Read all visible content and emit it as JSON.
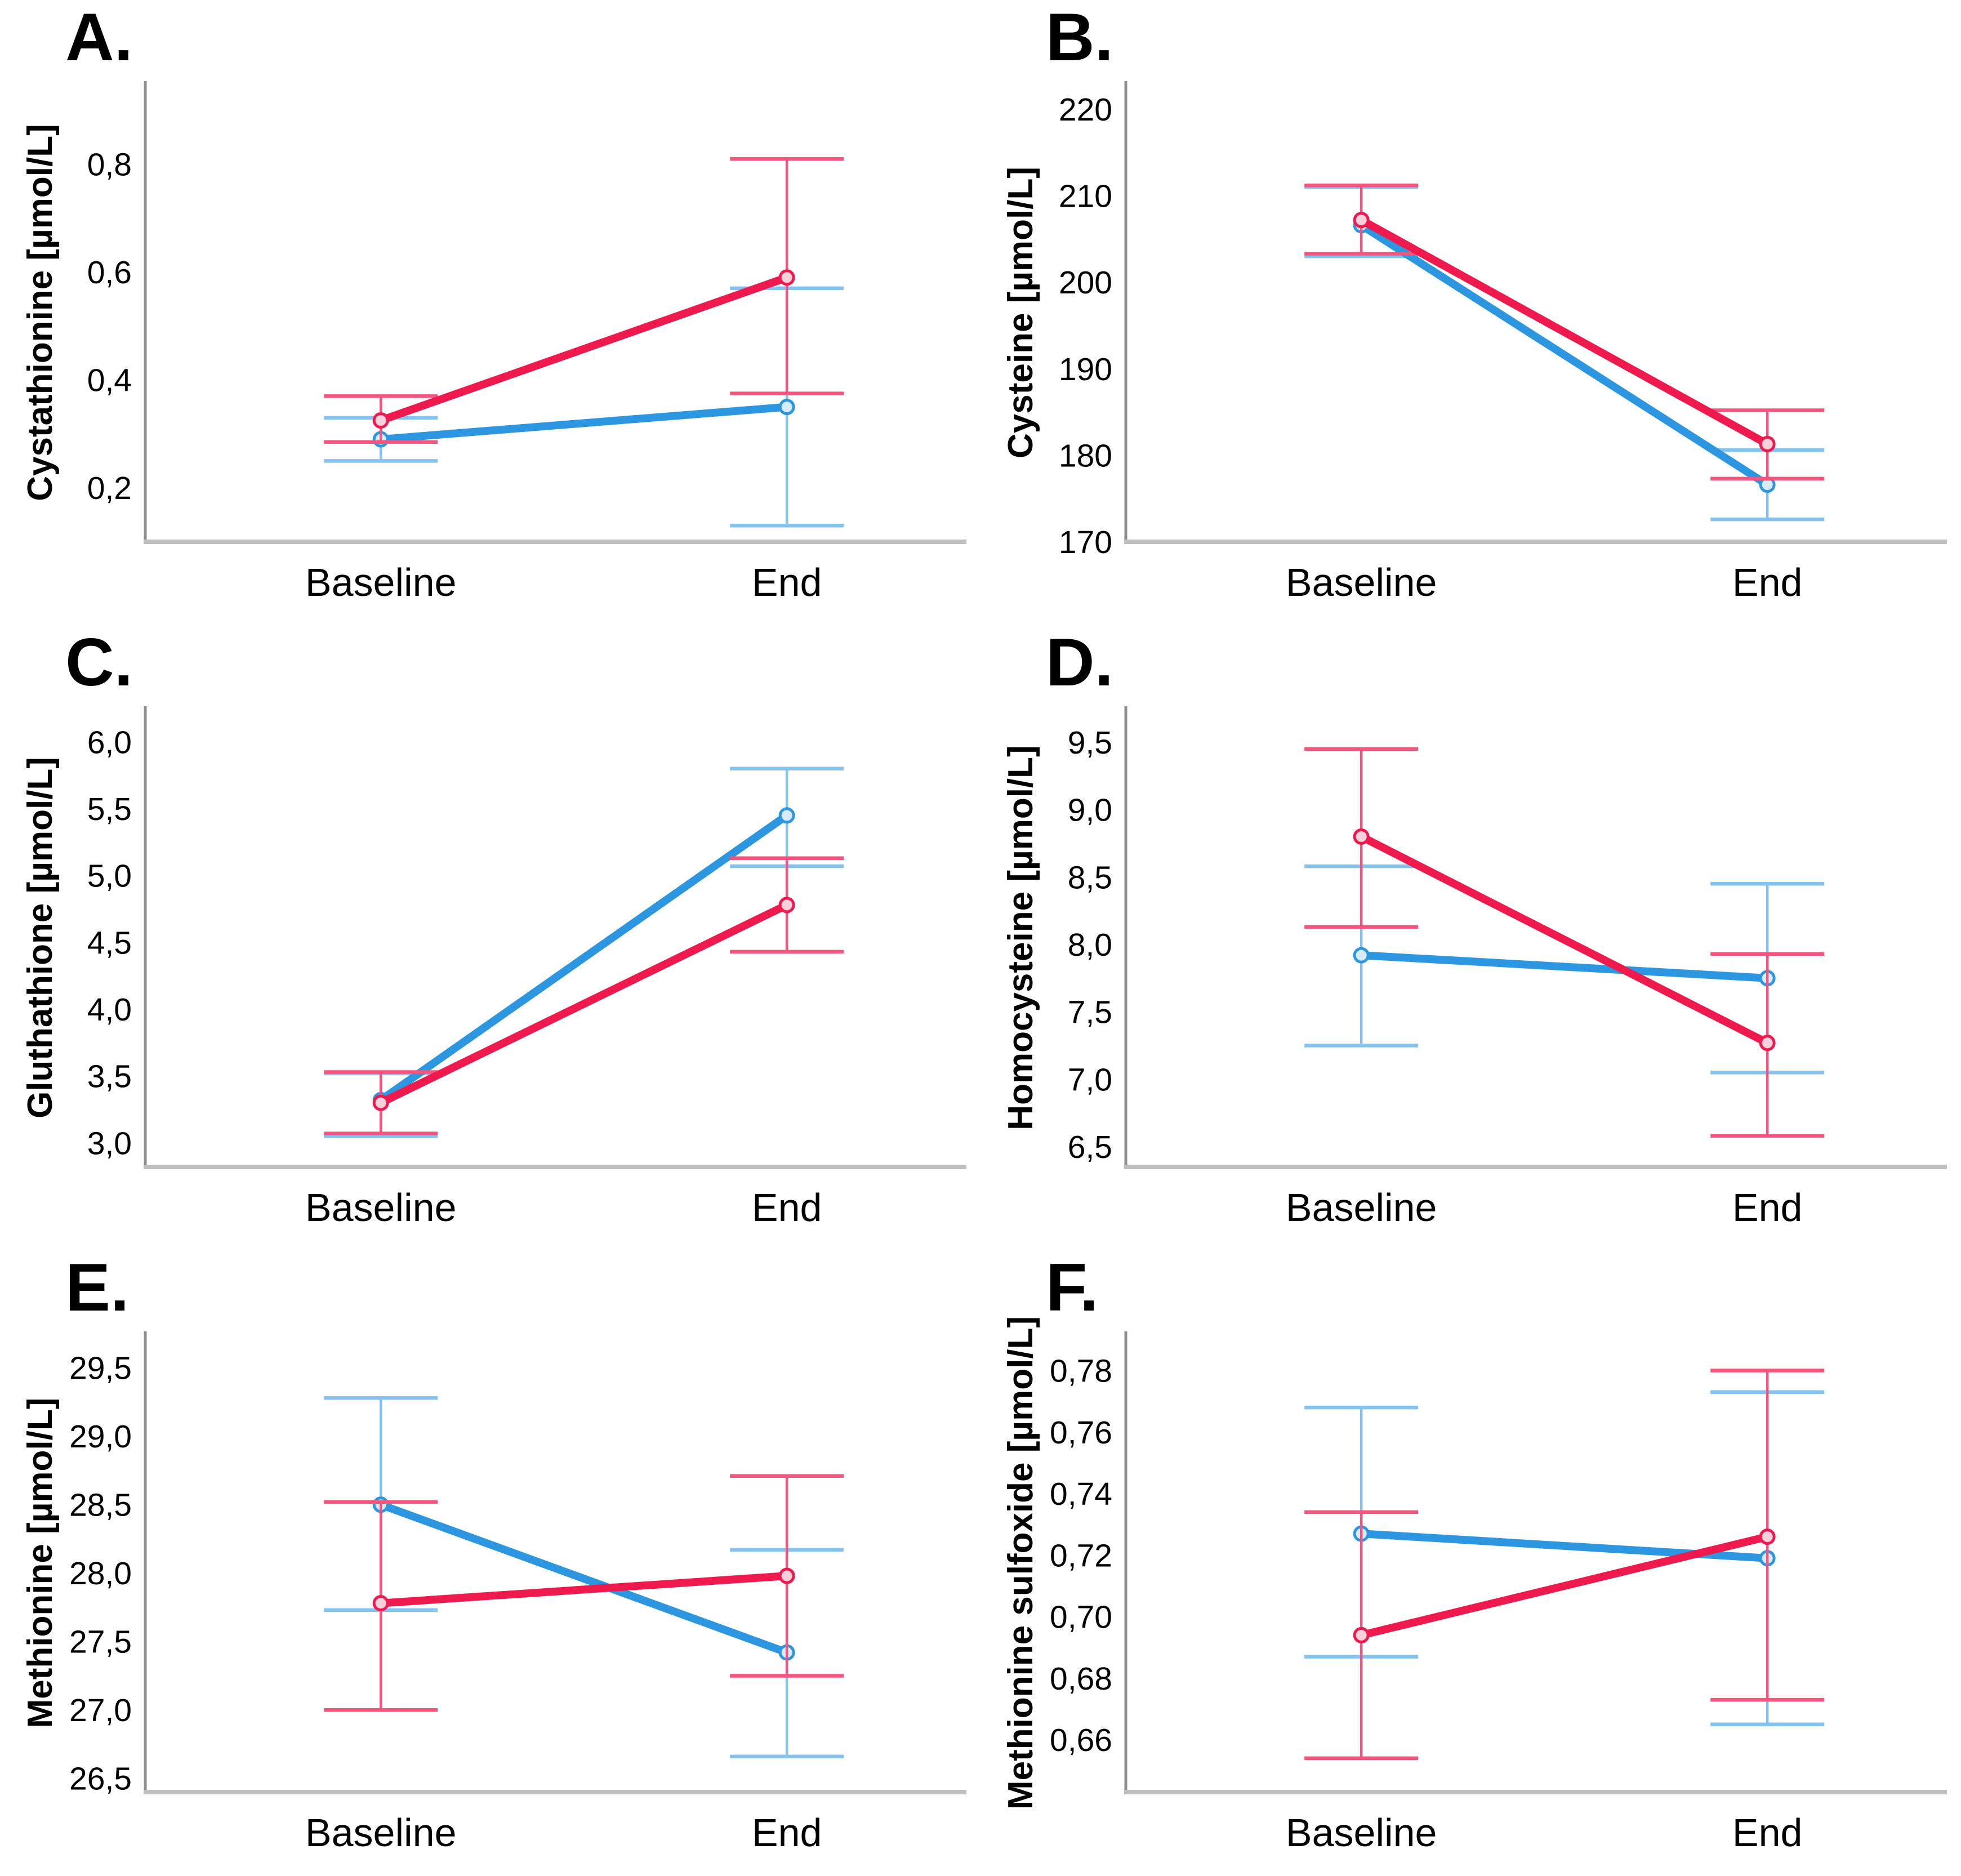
{
  "colors": {
    "red_line": "#EE1A4D",
    "red_error": "#F4547E",
    "red_marker_fill": "#FAD0DC",
    "blue_line": "#2D96E1",
    "blue_error": "#85C2F0",
    "blue_marker_fill": "#D8EBFA",
    "axis_y": "#8E8E8E",
    "axis_x": "#BFBFBF",
    "text": "#000000"
  },
  "chart_data": [
    {
      "id": "A",
      "panel_label": "A.",
      "type": "line",
      "ylabel": "Cystathionine [µmol/L]",
      "xlabel": "",
      "categories": [
        "Baseline",
        "End"
      ],
      "ylim": [
        0.1,
        0.95
      ],
      "yticks": [
        0.2,
        0.4,
        0.6,
        0.8
      ],
      "ytick_labels": [
        "0,2",
        "0,4",
        "0,6",
        "0,8"
      ],
      "grid": false,
      "legend": null,
      "series": [
        {
          "name": "blue",
          "color_key": "blue",
          "values": [
            0.29,
            0.35
          ],
          "err_low": [
            0.25,
            0.13
          ],
          "err_high": [
            0.33,
            0.57
          ]
        },
        {
          "name": "red",
          "color_key": "red",
          "values": [
            0.325,
            0.59
          ],
          "err_low": [
            0.285,
            0.375
          ],
          "err_high": [
            0.37,
            0.81
          ]
        }
      ]
    },
    {
      "id": "B",
      "panel_label": "B.",
      "type": "line",
      "ylabel": "Cysteine [µmol/L]",
      "xlabel": "",
      "categories": [
        "Baseline",
        "End"
      ],
      "ylim": [
        170,
        223
      ],
      "yticks": [
        170,
        180,
        190,
        200,
        210,
        220
      ],
      "ytick_labels": [
        "170",
        "180",
        "190",
        "200",
        "210",
        "220"
      ],
      "grid": false,
      "legend": null,
      "series": [
        {
          "name": "blue",
          "color_key": "blue",
          "values": [
            206.6,
            176.6
          ],
          "err_low": [
            203.0,
            172.6
          ],
          "err_high": [
            211.0,
            180.6
          ]
        },
        {
          "name": "red",
          "color_key": "red",
          "values": [
            207.2,
            181.3
          ],
          "err_low": [
            203.3,
            177.3
          ],
          "err_high": [
            211.2,
            185.2
          ]
        }
      ]
    },
    {
      "id": "C",
      "panel_label": "C.",
      "type": "line",
      "ylabel": "Gluthathione [µmol/L]",
      "xlabel": "",
      "categories": [
        "Baseline",
        "End"
      ],
      "ylim": [
        2.82,
        6.25
      ],
      "yticks": [
        3.0,
        3.5,
        4.0,
        4.5,
        5.0,
        5.5,
        6.0
      ],
      "ytick_labels": [
        "3,0",
        "3,5",
        "4,0",
        "4,5",
        "5,0",
        "5,5",
        "6,0"
      ],
      "grid": false,
      "legend": null,
      "series": [
        {
          "name": "blue",
          "color_key": "blue",
          "values": [
            3.32,
            5.45
          ],
          "err_low": [
            3.05,
            5.07
          ],
          "err_high": [
            3.52,
            5.8
          ]
        },
        {
          "name": "red",
          "color_key": "red",
          "values": [
            3.3,
            4.78
          ],
          "err_low": [
            3.07,
            4.43
          ],
          "err_high": [
            3.53,
            5.13
          ]
        }
      ]
    },
    {
      "id": "D",
      "panel_label": "D.",
      "type": "line",
      "ylabel": "Homocysteine [µmol/L]",
      "xlabel": "",
      "categories": [
        "Baseline",
        "End"
      ],
      "ylim": [
        6.35,
        9.75
      ],
      "yticks": [
        6.5,
        7.0,
        7.5,
        8.0,
        8.5,
        9.0,
        9.5
      ],
      "ytick_labels": [
        "6,5",
        "7,0",
        "7,5",
        "8,0",
        "8,5",
        "9,0",
        "9,5"
      ],
      "grid": false,
      "legend": null,
      "series": [
        {
          "name": "blue",
          "color_key": "blue",
          "values": [
            7.92,
            7.75
          ],
          "err_low": [
            7.25,
            7.05
          ],
          "err_high": [
            8.58,
            8.45
          ]
        },
        {
          "name": "red",
          "color_key": "red",
          "values": [
            8.8,
            7.27
          ],
          "err_low": [
            8.13,
            6.58
          ],
          "err_high": [
            9.45,
            7.93
          ]
        }
      ]
    },
    {
      "id": "E",
      "panel_label": "E.",
      "type": "line",
      "ylabel": "Methionine [µmol/L]",
      "xlabel": "",
      "categories": [
        "Baseline",
        "End"
      ],
      "ylim": [
        26.4,
        29.75
      ],
      "yticks": [
        26.5,
        27.0,
        27.5,
        28.0,
        28.5,
        29.0,
        29.5
      ],
      "ytick_labels": [
        "26,5",
        "27,0",
        "27,5",
        "28,0",
        "28,5",
        "29,0",
        "29,5"
      ],
      "grid": false,
      "legend": null,
      "series": [
        {
          "name": "blue",
          "color_key": "blue",
          "values": [
            28.5,
            27.42
          ],
          "err_low": [
            27.73,
            26.66
          ],
          "err_high": [
            29.28,
            28.17
          ]
        },
        {
          "name": "red",
          "color_key": "red",
          "values": [
            27.78,
            27.98
          ],
          "err_low": [
            27.0,
            27.25
          ],
          "err_high": [
            28.52,
            28.71
          ]
        }
      ]
    },
    {
      "id": "F",
      "panel_label": "F.",
      "type": "line",
      "ylabel": "Methionine sulfoxide [µmol/L]",
      "xlabel": "",
      "categories": [
        "Baseline",
        "End"
      ],
      "ylim": [
        0.643,
        0.792
      ],
      "yticks": [
        0.66,
        0.68,
        0.7,
        0.72,
        0.74,
        0.76,
        0.78
      ],
      "ytick_labels": [
        "0,66",
        "0,68",
        "0,70",
        "0,72",
        "0,74",
        "0,76",
        "0,78"
      ],
      "grid": false,
      "legend": null,
      "series": [
        {
          "name": "blue",
          "color_key": "blue",
          "values": [
            0.727,
            0.719
          ],
          "err_low": [
            0.687,
            0.665
          ],
          "err_high": [
            0.768,
            0.773
          ]
        },
        {
          "name": "red",
          "color_key": "red",
          "values": [
            0.694,
            0.726
          ],
          "err_low": [
            0.654,
            0.673
          ],
          "err_high": [
            0.734,
            0.78
          ]
        }
      ]
    }
  ]
}
